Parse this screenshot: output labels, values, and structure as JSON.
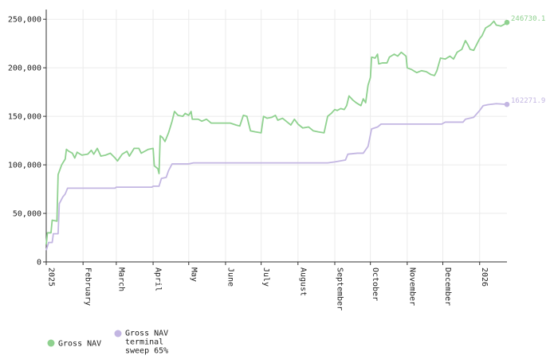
{
  "chart_data": {
    "type": "line",
    "title": "",
    "xlabel": "",
    "ylabel": "",
    "x_range": [
      "2025-01-01",
      "2026-01-24"
    ],
    "ylim": [
      0,
      260000
    ],
    "y_ticks": [
      0,
      50000,
      100000,
      150000,
      200000,
      250000
    ],
    "y_tick_labels": [
      "0",
      "50,000",
      "100,000",
      "150,000",
      "200,000",
      "250,000"
    ],
    "x_ticks": [
      "2025-01-01",
      "2025-02-01",
      "2025-03-01",
      "2025-04-01",
      "2025-05-01",
      "2025-06-01",
      "2025-07-01",
      "2025-08-01",
      "2025-09-01",
      "2025-10-01",
      "2025-11-01",
      "2025-12-01",
      "2026-01-01"
    ],
    "x_tick_labels": [
      "2025",
      "February",
      "March",
      "April",
      "May",
      "June",
      "July",
      "August",
      "September",
      "October",
      "November",
      "December",
      "2026"
    ],
    "grid": true,
    "legend_position": "bottom-left",
    "series": [
      {
        "name": "Gross NAV",
        "color": "#8fd18f",
        "end_label": "246730.1",
        "points": [
          [
            "2025-01-01",
            18000
          ],
          [
            "2025-01-02",
            30000
          ],
          [
            "2025-01-05",
            30000
          ],
          [
            "2025-01-06",
            43000
          ],
          [
            "2025-01-10",
            42000
          ],
          [
            "2025-01-11",
            90000
          ],
          [
            "2025-01-14",
            100000
          ],
          [
            "2025-01-17",
            106000
          ],
          [
            "2025-01-18",
            116000
          ],
          [
            "2025-01-20",
            114000
          ],
          [
            "2025-01-23",
            112000
          ],
          [
            "2025-01-25",
            107000
          ],
          [
            "2025-01-27",
            113000
          ],
          [
            "2025-01-31",
            110000
          ],
          [
            "2025-02-05",
            111000
          ],
          [
            "2025-02-08",
            115000
          ],
          [
            "2025-02-10",
            111000
          ],
          [
            "2025-02-13",
            117000
          ],
          [
            "2025-02-16",
            109000
          ],
          [
            "2025-02-20",
            110000
          ],
          [
            "2025-02-24",
            112000
          ],
          [
            "2025-02-28",
            107000
          ],
          [
            "2025-03-02",
            104000
          ],
          [
            "2025-03-06",
            111000
          ],
          [
            "2025-03-10",
            114000
          ],
          [
            "2025-03-12",
            109000
          ],
          [
            "2025-03-16",
            117000
          ],
          [
            "2025-03-20",
            117000
          ],
          [
            "2025-03-22",
            112000
          ],
          [
            "2025-03-25",
            114000
          ],
          [
            "2025-03-28",
            116000
          ],
          [
            "2025-04-01",
            117000
          ],
          [
            "2025-04-02",
            99000
          ],
          [
            "2025-04-05",
            96000
          ],
          [
            "2025-04-06",
            91000
          ],
          [
            "2025-04-07",
            130000
          ],
          [
            "2025-04-09",
            128000
          ],
          [
            "2025-04-11",
            124000
          ],
          [
            "2025-04-14",
            133000
          ],
          [
            "2025-04-17",
            145000
          ],
          [
            "2025-04-19",
            155000
          ],
          [
            "2025-04-22",
            151000
          ],
          [
            "2025-04-26",
            150000
          ],
          [
            "2025-04-28",
            153000
          ],
          [
            "2025-05-01",
            151000
          ],
          [
            "2025-05-03",
            155000
          ],
          [
            "2025-05-04",
            147000
          ],
          [
            "2025-05-09",
            147000
          ],
          [
            "2025-05-12",
            145000
          ],
          [
            "2025-05-16",
            147000
          ],
          [
            "2025-05-20",
            143000
          ],
          [
            "2025-05-28",
            143000
          ],
          [
            "2025-06-05",
            143000
          ],
          [
            "2025-06-10",
            141000
          ],
          [
            "2025-06-13",
            140000
          ],
          [
            "2025-06-16",
            151000
          ],
          [
            "2025-06-19",
            150000
          ],
          [
            "2025-06-22",
            135000
          ],
          [
            "2025-06-26",
            134000
          ],
          [
            "2025-07-01",
            133000
          ],
          [
            "2025-07-03",
            150000
          ],
          [
            "2025-07-06",
            148000
          ],
          [
            "2025-07-10",
            149000
          ],
          [
            "2025-07-13",
            151000
          ],
          [
            "2025-07-15",
            146000
          ],
          [
            "2025-07-19",
            148000
          ],
          [
            "2025-07-22",
            145000
          ],
          [
            "2025-07-26",
            141000
          ],
          [
            "2025-07-29",
            147000
          ],
          [
            "2025-08-01",
            142000
          ],
          [
            "2025-08-05",
            138000
          ],
          [
            "2025-08-10",
            139000
          ],
          [
            "2025-08-14",
            135000
          ],
          [
            "2025-08-18",
            134000
          ],
          [
            "2025-08-23",
            133000
          ],
          [
            "2025-08-26",
            150000
          ],
          [
            "2025-08-29",
            153000
          ],
          [
            "2025-09-01",
            157000
          ],
          [
            "2025-09-03",
            156000
          ],
          [
            "2025-09-06",
            158000
          ],
          [
            "2025-09-09",
            157000
          ],
          [
            "2025-09-11",
            161000
          ],
          [
            "2025-09-13",
            171000
          ],
          [
            "2025-09-16",
            167000
          ],
          [
            "2025-09-19",
            164000
          ],
          [
            "2025-09-23",
            161000
          ],
          [
            "2025-09-25",
            168000
          ],
          [
            "2025-09-27",
            164000
          ],
          [
            "2025-09-29",
            182000
          ],
          [
            "2025-10-01",
            190000
          ],
          [
            "2025-10-02",
            211000
          ],
          [
            "2025-10-05",
            210000
          ],
          [
            "2025-10-07",
            214000
          ],
          [
            "2025-10-08",
            204000
          ],
          [
            "2025-10-11",
            205000
          ],
          [
            "2025-10-15",
            205000
          ],
          [
            "2025-10-17",
            211000
          ],
          [
            "2025-10-21",
            214000
          ],
          [
            "2025-10-24",
            212000
          ],
          [
            "2025-10-27",
            216000
          ],
          [
            "2025-10-31",
            212000
          ],
          [
            "2025-11-01",
            200000
          ],
          [
            "2025-11-05",
            198000
          ],
          [
            "2025-11-09",
            195000
          ],
          [
            "2025-11-13",
            197000
          ],
          [
            "2025-11-17",
            196000
          ],
          [
            "2025-11-21",
            193000
          ],
          [
            "2025-11-24",
            192000
          ],
          [
            "2025-11-26",
            197000
          ],
          [
            "2025-11-29",
            210000
          ],
          [
            "2025-12-03",
            209000
          ],
          [
            "2025-12-07",
            212000
          ],
          [
            "2025-12-10",
            209000
          ],
          [
            "2025-12-13",
            216000
          ],
          [
            "2025-12-17",
            219000
          ],
          [
            "2025-12-20",
            228000
          ],
          [
            "2025-12-22",
            224000
          ],
          [
            "2025-12-24",
            219000
          ],
          [
            "2025-12-27",
            218000
          ],
          [
            "2026-01-01",
            230000
          ],
          [
            "2026-01-03",
            233000
          ],
          [
            "2026-01-06",
            241000
          ],
          [
            "2026-01-10",
            244000
          ],
          [
            "2026-01-13",
            248000
          ],
          [
            "2026-01-15",
            244000
          ],
          [
            "2026-01-19",
            243000
          ],
          [
            "2026-01-22",
            245000
          ],
          [
            "2026-01-24",
            246730.1
          ]
        ]
      },
      {
        "name": "Gross NAV terminal sweep 65%",
        "color": "#c3b6e2",
        "end_label": "162271.9",
        "points": [
          [
            "2025-01-01",
            12000
          ],
          [
            "2025-01-03",
            20000
          ],
          [
            "2025-01-06",
            20000
          ],
          [
            "2025-01-07",
            29000
          ],
          [
            "2025-01-11",
            29000
          ],
          [
            "2025-01-12",
            60000
          ],
          [
            "2025-01-15",
            67000
          ],
          [
            "2025-01-17",
            70000
          ],
          [
            "2025-01-19",
            76000
          ],
          [
            "2025-02-28",
            76000
          ],
          [
            "2025-03-01",
            77000
          ],
          [
            "2025-03-31",
            77000
          ],
          [
            "2025-04-01",
            78000
          ],
          [
            "2025-04-06",
            78000
          ],
          [
            "2025-04-08",
            86000
          ],
          [
            "2025-04-12",
            87000
          ],
          [
            "2025-04-14",
            94000
          ],
          [
            "2025-04-17",
            101000
          ],
          [
            "2025-05-01",
            101000
          ],
          [
            "2025-05-05",
            102000
          ],
          [
            "2025-08-26",
            102000
          ],
          [
            "2025-09-01",
            103000
          ],
          [
            "2025-09-10",
            105000
          ],
          [
            "2025-09-12",
            111000
          ],
          [
            "2025-09-20",
            112000
          ],
          [
            "2025-09-25",
            112000
          ],
          [
            "2025-09-29",
            119000
          ],
          [
            "2025-10-02",
            137000
          ],
          [
            "2025-10-07",
            139000
          ],
          [
            "2025-10-10",
            142000
          ],
          [
            "2025-11-30",
            142000
          ],
          [
            "2025-12-03",
            144000
          ],
          [
            "2025-12-18",
            144000
          ],
          [
            "2025-12-20",
            147000
          ],
          [
            "2025-12-27",
            149000
          ],
          [
            "2026-01-01",
            156000
          ],
          [
            "2026-01-04",
            161000
          ],
          [
            "2026-01-08",
            162000
          ],
          [
            "2026-01-15",
            163000
          ],
          [
            "2026-01-24",
            162271.9
          ]
        ]
      }
    ]
  }
}
